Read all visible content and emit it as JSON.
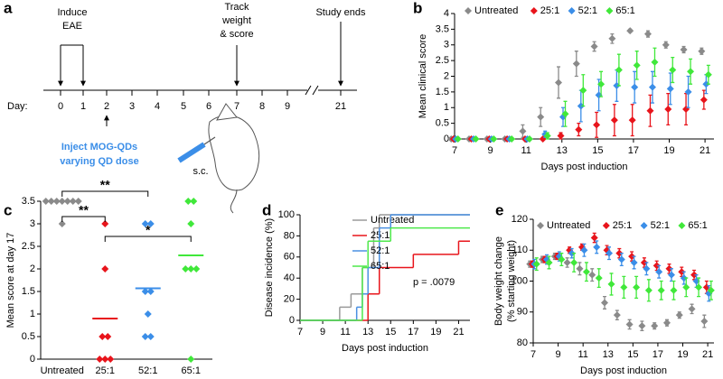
{
  "timeline": {
    "panel_label": "a",
    "induce": [
      "Induce",
      "EAE"
    ],
    "track": [
      "Track",
      "weight",
      "& score"
    ],
    "ends": "Study ends",
    "day_label": "Day:",
    "days": [
      0,
      1,
      2,
      3,
      4,
      5,
      6,
      7,
      8,
      9,
      21
    ],
    "inject": [
      "Inject MOG-QDs",
      "varying QD dose"
    ],
    "route": "s.c."
  },
  "chart_data": [
    {
      "type": "scatter",
      "panel_label": "b",
      "x": [
        7,
        8,
        9,
        10,
        11,
        12,
        13,
        14,
        15,
        16,
        17,
        18,
        19,
        20,
        21
      ],
      "series": [
        {
          "name": "Untreated",
          "color": "#8a8a8a",
          "values": [
            0,
            0,
            0,
            0,
            0.25,
            0.7,
            1.8,
            2.4,
            2.95,
            3.2,
            3.45,
            3.35,
            3.0,
            2.85,
            2.8
          ],
          "errors": [
            0,
            0,
            0,
            0,
            0.2,
            0.3,
            0.5,
            0.4,
            0.15,
            0.15,
            0.05,
            0.1,
            0.1,
            0.1,
            0.1
          ]
        },
        {
          "name": "25:1",
          "color": "#e8141b",
          "values": [
            0,
            0,
            0,
            0,
            0,
            0,
            0.1,
            0.3,
            0.45,
            0.6,
            0.6,
            0.9,
            0.95,
            0.95,
            1.25
          ],
          "errors": [
            0,
            0,
            0,
            0,
            0,
            0,
            0.1,
            0.2,
            0.4,
            0.5,
            0.5,
            0.5,
            0.5,
            0.5,
            0.3
          ]
        },
        {
          "name": "52:1",
          "color": "#3b8ee8",
          "values": [
            0,
            0,
            0,
            0,
            0,
            0.15,
            0.7,
            1.05,
            1.4,
            1.7,
            1.65,
            1.65,
            1.6,
            1.5,
            1.75
          ],
          "errors": [
            0,
            0,
            0,
            0,
            0,
            0.1,
            0.3,
            0.5,
            0.5,
            0.5,
            0.5,
            0.5,
            0.5,
            0.5,
            0.3
          ]
        },
        {
          "name": "65:1",
          "color": "#40e83a",
          "values": [
            0,
            0,
            0,
            0,
            0,
            0.1,
            0.8,
            1.55,
            1.75,
            2.2,
            2.35,
            2.45,
            2.2,
            2.15,
            2.05
          ],
          "errors": [
            0,
            0,
            0,
            0,
            0,
            0.1,
            0.4,
            0.5,
            0.4,
            0.5,
            0.45,
            0.45,
            0.4,
            0.4,
            0.3
          ]
        }
      ],
      "xlim": [
        7,
        21.5
      ],
      "xticks": [
        7,
        9,
        11,
        13,
        15,
        17,
        19,
        21
      ],
      "ylim": [
        0,
        4
      ],
      "yticks": [
        0,
        0.5,
        1,
        1.5,
        2,
        2.5,
        3,
        3.5,
        4
      ],
      "xlabel": "Days post induction",
      "ylabel": "Mean clinical score",
      "legend": "top"
    },
    {
      "type": "dot",
      "panel_label": "c",
      "categories": [
        "Untreated",
        "25:1",
        "52:1",
        "65:1"
      ],
      "colors": [
        "#8a8a8a",
        "#e8141b",
        "#3b8ee8",
        "#40e83a"
      ],
      "points": [
        [
          3.5,
          3.5,
          3.5,
          3.5,
          3.5,
          3.5,
          3.5,
          3
        ],
        [
          3,
          2,
          0.5,
          0.5,
          0,
          0,
          0
        ],
        [
          3,
          3,
          1.5,
          1.5,
          1,
          0.5,
          0.5
        ],
        [
          3.5,
          3.5,
          3,
          2,
          2,
          2,
          0
        ]
      ],
      "means": [
        null,
        0.9,
        1.57,
        2.3
      ],
      "ylim": [
        0,
        3.5
      ],
      "yticks": [
        0,
        0.5,
        1,
        1.5,
        2,
        2.5,
        3,
        3.5
      ],
      "ylabel": "Mean score at day 17",
      "annotations": [
        {
          "text": "**",
          "between": [
            "Untreated",
            "25:1"
          ]
        },
        {
          "text": "**",
          "between": [
            "Untreated",
            "52:1"
          ]
        },
        {
          "text": "*",
          "between": [
            "25:1",
            "65:1"
          ]
        }
      ]
    },
    {
      "type": "step",
      "panel_label": "d",
      "series": [
        {
          "name": "Untreated",
          "color": "#9a9a9a",
          "x": [
            7,
            10.5,
            11.5,
            12.5,
            13.5,
            14,
            22
          ],
          "values": [
            0,
            12.5,
            25,
            50,
            87.5,
            100,
            100
          ]
        },
        {
          "name": "25:1",
          "color": "#e8141b",
          "x": [
            7,
            13,
            14,
            17,
            21,
            22
          ],
          "values": [
            0,
            25,
            50,
            62.5,
            75,
            75
          ]
        },
        {
          "name": "52:1",
          "color": "#4a90e2",
          "x": [
            7,
            12,
            12.5,
            13,
            14,
            15,
            22
          ],
          "values": [
            0,
            12.5,
            25,
            50,
            87.5,
            100,
            100
          ]
        },
        {
          "name": "65:1",
          "color": "#4ee84b",
          "x": [
            7,
            12.5,
            13,
            15,
            22
          ],
          "values": [
            0,
            50,
            75,
            87.5,
            87.5
          ]
        }
      ],
      "xlim": [
        7,
        22
      ],
      "xticks": [
        7,
        9,
        11,
        13,
        15,
        17,
        19,
        21
      ],
      "ylim": [
        0,
        100
      ],
      "yticks": [
        0,
        20,
        40,
        60,
        80,
        100
      ],
      "xlabel": "Days post induction",
      "ylabel": "Disease incidence (%)",
      "annotation": "p = .0079",
      "legend": "upper left"
    },
    {
      "type": "scatter",
      "panel_label": "e",
      "x": [
        7,
        8,
        9,
        10,
        11,
        12,
        13,
        14,
        15,
        16,
        17,
        18,
        19,
        20,
        21
      ],
      "series": [
        {
          "name": "Untreated",
          "color": "#8a8a8a",
          "values": [
            105.5,
            107,
            108,
            106,
            104,
            102,
            93,
            89,
            86,
            85.5,
            85.5,
            86.5,
            89,
            91,
            87
          ],
          "errors": [
            1,
            1,
            1,
            1.5,
            2,
            2,
            2,
            1.5,
            1.5,
            1.5,
            1,
            1,
            1,
            1.5,
            2
          ]
        },
        {
          "name": "25:1",
          "color": "#e8141b",
          "values": [
            105.5,
            107,
            108,
            110,
            111,
            114,
            110,
            109,
            108,
            106,
            105,
            104,
            103,
            102,
            98
          ],
          "errors": [
            1,
            1,
            1,
            1,
            1,
            1.5,
            1.5,
            1.5,
            1.5,
            1.5,
            1.5,
            1.5,
            1.5,
            1.5,
            2
          ]
        },
        {
          "name": "52:1",
          "color": "#3b8ee8",
          "values": [
            105.5,
            107,
            108,
            109,
            110,
            111,
            109,
            107,
            106,
            104,
            103,
            102,
            101,
            100,
            96
          ],
          "errors": [
            1.5,
            1.5,
            1.5,
            1.5,
            2,
            2,
            2,
            2,
            2,
            2,
            2,
            2,
            2,
            2,
            2.5
          ]
        },
        {
          "name": "65:1",
          "color": "#40e83a",
          "values": [
            105.5,
            106,
            107,
            106,
            103,
            101,
            99,
            98,
            98,
            97,
            97,
            97,
            98,
            98,
            97
          ],
          "errors": [
            2,
            2,
            2,
            3,
            3,
            3,
            3.5,
            3.5,
            3.5,
            3.5,
            3,
            3,
            3,
            3,
            3
          ]
        }
      ],
      "xlim": [
        7,
        21.5
      ],
      "xticks": [
        7,
        9,
        11,
        13,
        15,
        17,
        19,
        21
      ],
      "ylim": [
        80,
        120
      ],
      "yticks": [
        80,
        90,
        100,
        110,
        120
      ],
      "xlabel": "Days post induction",
      "ylabel": [
        "Body weight change",
        "(% starting weight)"
      ],
      "legend": "top"
    }
  ]
}
